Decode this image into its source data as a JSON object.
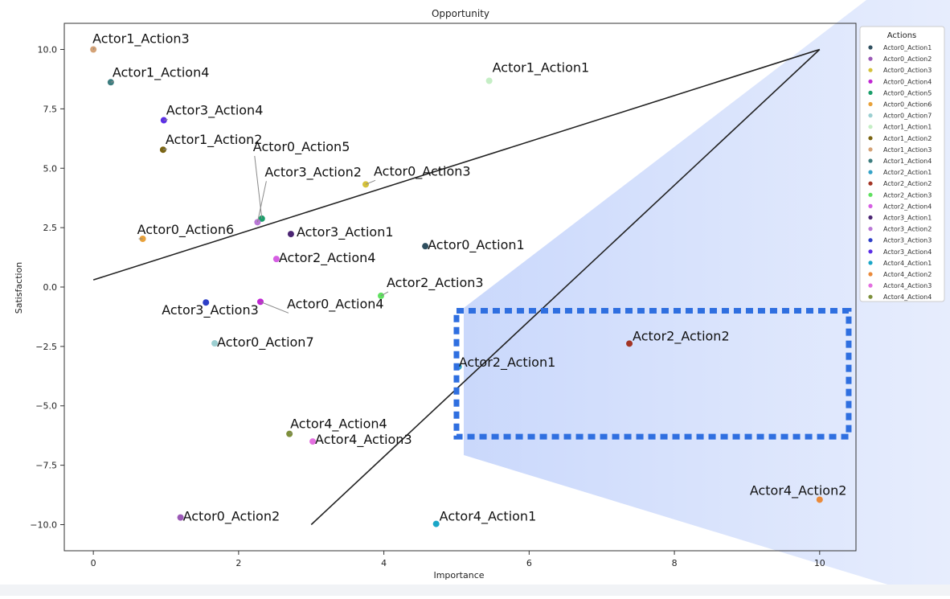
{
  "chart_data": {
    "type": "scatter",
    "title": "Opportunity",
    "xlabel": "Importance",
    "ylabel": "Satisfaction",
    "xlim": [
      -0.4,
      10.5
    ],
    "ylim": [
      -11.1,
      11.1
    ],
    "xticks": [
      0,
      2,
      4,
      6,
      8,
      10
    ],
    "yticks": [
      10.0,
      7.5,
      5.0,
      2.5,
      0.0,
      -2.5,
      -5.0,
      -7.5,
      -10.0
    ],
    "xtick_labels": [
      "0",
      "2",
      "4",
      "6",
      "8",
      "10"
    ],
    "ytick_labels": [
      "10.0",
      "7.5",
      "5.0",
      "2.5",
      "0.0",
      "−2.5",
      "−5.0",
      "−7.5",
      "−10.0"
    ],
    "grid": false,
    "legend": {
      "title": "Actions",
      "placement": "outside-top-right"
    },
    "series": [
      {
        "name": "Actor0_Action1",
        "x": 4.57,
        "y": 1.72,
        "color": "#2f4f5f"
      },
      {
        "name": "Actor0_Action2",
        "x": 1.2,
        "y": -9.7,
        "color": "#9b59b6"
      },
      {
        "name": "Actor0_Action3",
        "x": 3.75,
        "y": 4.32,
        "color": "#d4c13a"
      },
      {
        "name": "Actor0_Action4",
        "x": 2.3,
        "y": -0.62,
        "color": "#c026d3"
      },
      {
        "name": "Actor0_Action5",
        "x": 2.32,
        "y": 2.88,
        "color": "#1a9e6a"
      },
      {
        "name": "Actor0_Action6",
        "x": 0.68,
        "y": 2.03,
        "color": "#e8a13a"
      },
      {
        "name": "Actor0_Action7",
        "x": 1.67,
        "y": -2.37,
        "color": "#9ccfd1"
      },
      {
        "name": "Actor1_Action1",
        "x": 5.45,
        "y": 8.68,
        "color": "#c5eec5"
      },
      {
        "name": "Actor1_Action2",
        "x": 0.96,
        "y": 5.78,
        "color": "#7a6412"
      },
      {
        "name": "Actor1_Action3",
        "x": 0.0,
        "y": 10.0,
        "color": "#d4a276"
      },
      {
        "name": "Actor1_Action4",
        "x": 0.24,
        "y": 8.62,
        "color": "#3d7d7f"
      },
      {
        "name": "Actor2_Action1",
        "x": 5.03,
        "y": -3.35,
        "color": "#35a3c8"
      },
      {
        "name": "Actor2_Action2",
        "x": 7.38,
        "y": -2.38,
        "color": "#a33525"
      },
      {
        "name": "Actor2_Action3",
        "x": 3.96,
        "y": -0.37,
        "color": "#5fe05f"
      },
      {
        "name": "Actor2_Action4",
        "x": 2.52,
        "y": 1.18,
        "color": "#d65fe3"
      },
      {
        "name": "Actor3_Action1",
        "x": 2.72,
        "y": 2.23,
        "color": "#4b2573"
      },
      {
        "name": "Actor3_Action2",
        "x": 2.26,
        "y": 2.73,
        "color": "#b978d6"
      },
      {
        "name": "Actor3_Action3",
        "x": 1.55,
        "y": -0.65,
        "color": "#2e3fc7"
      },
      {
        "name": "Actor3_Action4",
        "x": 0.97,
        "y": 7.02,
        "color": "#5b2ee6"
      },
      {
        "name": "Actor4_Action1",
        "x": 4.72,
        "y": -9.97,
        "color": "#1aa6c7"
      },
      {
        "name": "Actor4_Action2",
        "x": 10.0,
        "y": -8.95,
        "color": "#ea8a3a"
      },
      {
        "name": "Actor4_Action3",
        "x": 3.02,
        "y": -6.5,
        "color": "#e36fe0"
      },
      {
        "name": "Actor4_Action4",
        "x": 2.7,
        "y": -6.18,
        "color": "#7d8f3a"
      }
    ],
    "lines": [
      {
        "x": [
          0,
          10
        ],
        "y": [
          0.3,
          10
        ],
        "color": "#222222"
      },
      {
        "x": [
          3,
          10
        ],
        "y": [
          -10,
          10
        ],
        "color": "#222222"
      }
    ],
    "highlight_box": {
      "x": [
        5.0,
        10.4
      ],
      "y": [
        -1.0,
        -6.3
      ],
      "color": "#2f6fe0"
    }
  }
}
